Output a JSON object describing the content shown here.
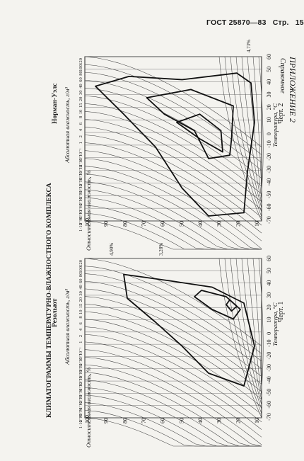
{
  "header": {
    "standard": "ГОСТ 25870—83",
    "page_label": "Стр.",
    "page_number": "151"
  },
  "appendix": {
    "title": "ПРИЛОЖЕНИЕ 2",
    "subtitle": "Справочное"
  },
  "main_title": "КЛИМАТОГРАММЫ ТЕМПЕРАТУРНО-ВЛАЖНОСТНОГО КОМПЛЕКСА",
  "chart_data": [
    {
      "type": "line",
      "place": "Норман-Уэлс",
      "figure_caption": "Черт. 2",
      "xlabel": "Температура, °С",
      "ylabel_left": "Относительная влажность, %",
      "ylabel_right": "Абсолютная влажность, г/м³",
      "x_ticks": [
        "-70",
        "-60",
        "-50",
        "-40",
        "-30",
        "-20",
        "-10",
        "0",
        "10",
        "20",
        "30",
        "40",
        "50",
        "60"
      ],
      "rh_ticks": [
        "100",
        "90",
        "80",
        "70",
        "60",
        "50",
        "40",
        "30",
        "20",
        "10"
      ],
      "ah_ticks": [
        "120",
        "100",
        "80",
        "60",
        "40",
        "30",
        "20",
        "15",
        "10",
        "8",
        "6",
        "4",
        "2",
        "1",
        "5·10⁻¹",
        "2·10⁻¹",
        "1·10⁻¹",
        "5·10⁻²",
        "2·10⁻²",
        "1·10⁻²",
        "5·10⁻³",
        "2·10⁻³",
        "1·10⁻³",
        "5·10⁻⁴",
        "2·10⁻⁴",
        "1·10⁻⁴"
      ],
      "annotation": "4,73%"
    },
    {
      "type": "line",
      "place": "Резольют",
      "figure_caption": "Черт. 1",
      "xlabel": "Температура, °С",
      "ylabel_left": "Относительная влажность, %",
      "ylabel_right": "Абсолютная влажность, г/м³",
      "x_ticks": [
        "-70",
        "-60",
        "-50",
        "-40",
        "-30",
        "-20",
        "-10",
        "0",
        "10",
        "20",
        "30",
        "40",
        "50",
        "60"
      ],
      "rh_ticks": [
        "100",
        "90",
        "80",
        "70",
        "60",
        "50",
        "40",
        "30",
        "20",
        "10"
      ],
      "ah_ticks": [
        "120",
        "100",
        "80",
        "60",
        "40",
        "30",
        "20",
        "15",
        "10",
        "8",
        "6",
        "4",
        "2",
        "1",
        "5·10⁻¹",
        "2·10⁻¹",
        "1·10⁻¹",
        "5·10⁻²",
        "2·10⁻²",
        "1·10⁻²",
        "5·10⁻³",
        "2·10⁻³",
        "1·10⁻³",
        "5·10⁻⁴",
        "2·10⁻⁴",
        "1·10⁻⁴"
      ],
      "annotation_a": "4,90%",
      "annotation_b": "3,28%"
    }
  ]
}
